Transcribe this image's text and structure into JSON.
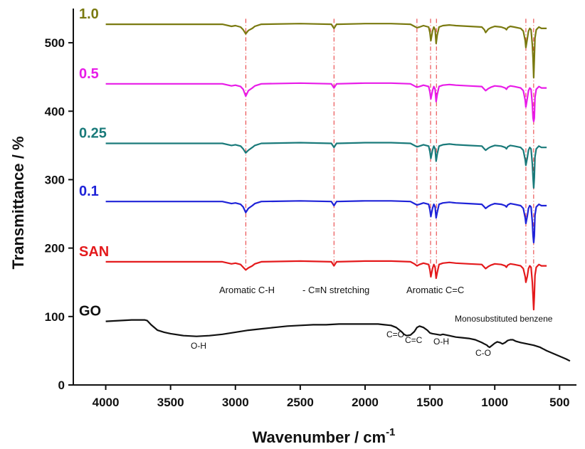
{
  "chart_data": {
    "type": "line",
    "xlabel": "Wavenumber / cm",
    "xlabel_sup": "-1",
    "ylabel": "Transmittance / %",
    "xlim": [
      4250,
      370
    ],
    "ylim": [
      0,
      550
    ],
    "x_ticks": [
      4000,
      3500,
      3000,
      2500,
      2000,
      1500,
      1000,
      500
    ],
    "y_ticks": [
      0,
      100,
      200,
      300,
      400,
      500
    ],
    "grid": false,
    "reference_lines": [
      2920,
      2240,
      1600,
      1495,
      1450,
      760,
      700
    ],
    "series": [
      {
        "name": "GO",
        "color": "#111111",
        "x": [
          4000,
          3900,
          3800,
          3700,
          3680,
          3650,
          3600,
          3550,
          3500,
          3400,
          3300,
          3200,
          3100,
          3000,
          2900,
          2800,
          2700,
          2600,
          2500,
          2400,
          2300,
          2200,
          2100,
          2000,
          1900,
          1850,
          1800,
          1760,
          1720,
          1700,
          1680,
          1650,
          1620,
          1600,
          1580,
          1550,
          1520,
          1500,
          1480,
          1450,
          1420,
          1400,
          1350,
          1300,
          1250,
          1200,
          1150,
          1100,
          1080,
          1060,
          1050,
          1040,
          1020,
          1000,
          980,
          960,
          940,
          920,
          900,
          880,
          860,
          840,
          800,
          750,
          700,
          650,
          600,
          550,
          500,
          450,
          420
        ],
        "values": [
          93,
          94,
          95,
          95,
          94,
          88,
          80,
          77,
          75,
          72,
          71,
          72,
          74,
          77,
          80,
          82,
          84,
          86,
          87,
          88,
          88,
          89,
          89,
          89,
          89,
          88,
          87,
          84,
          78,
          74,
          72,
          73,
          78,
          84,
          86,
          84,
          80,
          76,
          75,
          74,
          73,
          74,
          72,
          70,
          69,
          68,
          66,
          62,
          60,
          58,
          56,
          55,
          58,
          61,
          63,
          62,
          60,
          62,
          65,
          66,
          66,
          64,
          62,
          60,
          58,
          55,
          50,
          46,
          42,
          38,
          35
        ]
      },
      {
        "name": "SAN",
        "color": "#e41a1c",
        "offset": 180,
        "x": [
          4000,
          3600,
          3200,
          3100,
          3030,
          3000,
          2960,
          2940,
          2920,
          2900,
          2870,
          2850,
          2800,
          2500,
          2260,
          2240,
          2220,
          2000,
          1800,
          1650,
          1620,
          1600,
          1580,
          1550,
          1510,
          1500,
          1493,
          1480,
          1470,
          1460,
          1452,
          1444,
          1430,
          1400,
          1350,
          1300,
          1200,
          1100,
          1080,
          1070,
          1050,
          1030,
          1000,
          950,
          920,
          910,
          900,
          880,
          850,
          800,
          780,
          765,
          760,
          750,
          740,
          730,
          720,
          710,
          705,
          700,
          695,
          690,
          680,
          660,
          640,
          620,
          600
        ],
        "values": [
          0,
          0,
          0,
          0,
          -3,
          -2,
          -4,
          -8,
          -12,
          -9,
          -6,
          -3,
          0,
          1,
          0,
          -6,
          0,
          1,
          1,
          0,
          -3,
          -6,
          -4,
          -2,
          -4,
          -12,
          -22,
          -10,
          -4,
          -8,
          -24,
          -16,
          -4,
          -2,
          -1,
          -2,
          -3,
          -4,
          -8,
          -10,
          -7,
          -5,
          -3,
          -4,
          -6,
          -8,
          -5,
          -3,
          -4,
          -6,
          -10,
          -22,
          -30,
          -22,
          -10,
          -6,
          -8,
          -30,
          -50,
          -70,
          -50,
          -20,
          -8,
          -4,
          -6,
          -6,
          -6
        ]
      },
      {
        "name": "0.1",
        "color": "#1f23d8",
        "offset": 268,
        "x": [
          4000,
          3600,
          3200,
          3100,
          3030,
          3000,
          2960,
          2940,
          2920,
          2900,
          2870,
          2850,
          2800,
          2500,
          2260,
          2240,
          2220,
          2000,
          1800,
          1650,
          1620,
          1600,
          1580,
          1550,
          1510,
          1500,
          1493,
          1480,
          1470,
          1460,
          1452,
          1444,
          1430,
          1400,
          1350,
          1300,
          1200,
          1100,
          1080,
          1070,
          1050,
          1030,
          1000,
          950,
          920,
          910,
          900,
          880,
          850,
          800,
          780,
          765,
          760,
          750,
          740,
          730,
          720,
          710,
          705,
          700,
          695,
          690,
          680,
          660,
          640,
          620,
          600
        ],
        "values": [
          0,
          0,
          0,
          0,
          -3,
          -2,
          -4,
          -8,
          -16,
          -10,
          -6,
          -3,
          0,
          1,
          0,
          -6,
          0,
          1,
          1,
          0,
          -3,
          -5,
          -4,
          -2,
          -4,
          -12,
          -22,
          -10,
          -4,
          -8,
          -24,
          -16,
          -4,
          -2,
          -1,
          -2,
          -3,
          -4,
          -8,
          -10,
          -7,
          -5,
          -3,
          -4,
          -6,
          -8,
          -5,
          -3,
          -4,
          -6,
          -10,
          -24,
          -32,
          -22,
          -10,
          -6,
          -8,
          -30,
          -50,
          -60,
          -50,
          -20,
          -8,
          -4,
          -6,
          -6,
          -6
        ]
      },
      {
        "name": "0.25",
        "color": "#1a7a7a",
        "offset": 353,
        "x": [
          4000,
          3600,
          3200,
          3100,
          3030,
          3000,
          2960,
          2940,
          2920,
          2900,
          2870,
          2850,
          2800,
          2500,
          2260,
          2240,
          2220,
          2000,
          1800,
          1650,
          1620,
          1600,
          1580,
          1550,
          1510,
          1500,
          1493,
          1480,
          1470,
          1460,
          1452,
          1444,
          1430,
          1400,
          1350,
          1300,
          1200,
          1100,
          1080,
          1070,
          1050,
          1030,
          1000,
          950,
          920,
          910,
          900,
          880,
          850,
          800,
          780,
          765,
          760,
          750,
          740,
          730,
          720,
          710,
          705,
          700,
          695,
          690,
          680,
          660,
          640,
          620,
          600
        ],
        "values": [
          0,
          0,
          0,
          0,
          -3,
          -2,
          -4,
          -8,
          -14,
          -10,
          -6,
          -3,
          0,
          1,
          0,
          -6,
          0,
          1,
          1,
          0,
          -3,
          -5,
          -4,
          -2,
          -4,
          -12,
          -22,
          -10,
          -4,
          -8,
          -26,
          -16,
          -4,
          -2,
          -1,
          -2,
          -3,
          -4,
          -8,
          -10,
          -7,
          -5,
          -3,
          -4,
          -6,
          -8,
          -5,
          -3,
          -4,
          -6,
          -10,
          -24,
          -32,
          -22,
          -10,
          -6,
          -8,
          -30,
          -50,
          -65,
          -50,
          -20,
          -8,
          -4,
          -6,
          -6,
          -6
        ]
      },
      {
        "name": "0.5",
        "color": "#e81ce8",
        "offset": 440,
        "x": [
          4000,
          3600,
          3200,
          3100,
          3030,
          3000,
          2960,
          2940,
          2920,
          2900,
          2870,
          2850,
          2800,
          2500,
          2260,
          2240,
          2220,
          2000,
          1800,
          1650,
          1620,
          1600,
          1580,
          1550,
          1510,
          1500,
          1493,
          1480,
          1470,
          1460,
          1452,
          1444,
          1430,
          1400,
          1350,
          1300,
          1200,
          1100,
          1080,
          1070,
          1050,
          1030,
          1000,
          950,
          920,
          910,
          900,
          880,
          850,
          800,
          780,
          765,
          760,
          750,
          740,
          730,
          720,
          710,
          705,
          700,
          695,
          690,
          680,
          660,
          640,
          620,
          600
        ],
        "values": [
          0,
          0,
          0,
          0,
          -3,
          -2,
          -4,
          -8,
          -18,
          -10,
          -6,
          -3,
          0,
          1,
          0,
          -6,
          0,
          1,
          1,
          0,
          -3,
          -5,
          -4,
          -2,
          -4,
          -12,
          -22,
          -10,
          -4,
          -8,
          -26,
          -16,
          -4,
          -2,
          -1,
          -2,
          -3,
          -4,
          -8,
          -10,
          -7,
          -5,
          -3,
          -4,
          -6,
          -8,
          -5,
          -3,
          -4,
          -6,
          -10,
          -24,
          -34,
          -22,
          -10,
          -6,
          -8,
          -30,
          -50,
          -55,
          -50,
          -20,
          -8,
          -4,
          -6,
          -6,
          -6
        ]
      },
      {
        "name": "1.0",
        "color": "#7a7a10",
        "offset": 527,
        "x": [
          4000,
          3600,
          3200,
          3100,
          3030,
          3000,
          2960,
          2940,
          2920,
          2900,
          2870,
          2850,
          2800,
          2500,
          2260,
          2240,
          2220,
          2000,
          1800,
          1650,
          1620,
          1600,
          1580,
          1550,
          1510,
          1500,
          1493,
          1480,
          1470,
          1460,
          1452,
          1444,
          1430,
          1400,
          1350,
          1300,
          1200,
          1100,
          1080,
          1070,
          1050,
          1030,
          1000,
          950,
          920,
          910,
          900,
          880,
          850,
          800,
          780,
          765,
          760,
          750,
          740,
          730,
          720,
          710,
          705,
          700,
          695,
          690,
          680,
          660,
          640,
          620,
          600
        ],
        "values": [
          0,
          0,
          0,
          0,
          -3,
          -2,
          -4,
          -8,
          -14,
          -9,
          -6,
          -3,
          0,
          1,
          0,
          -6,
          0,
          1,
          1,
          0,
          -3,
          -5,
          -4,
          -2,
          -4,
          -12,
          -24,
          -10,
          -4,
          -8,
          -28,
          -16,
          -4,
          -2,
          -1,
          -2,
          -3,
          -4,
          -8,
          -12,
          -7,
          -5,
          -3,
          -4,
          -6,
          -8,
          -5,
          -3,
          -4,
          -6,
          -10,
          -24,
          -34,
          -22,
          -10,
          -6,
          -8,
          -30,
          -50,
          -78,
          -50,
          -20,
          -8,
          -4,
          -6,
          -6,
          -6
        ]
      }
    ],
    "annotations": {
      "aromatic_ch": "Aromatic C-H",
      "cn_stretching": "- C≡N stretching",
      "aromatic_cc": "Aromatic C=C",
      "monosubstituted": "Monosubstituted benzene",
      "go_oh1": "O-H",
      "go_co_dbl": "C=O",
      "go_cc_dbl": "C=C",
      "go_oh2": "O-H",
      "go_co": "C-O"
    }
  }
}
